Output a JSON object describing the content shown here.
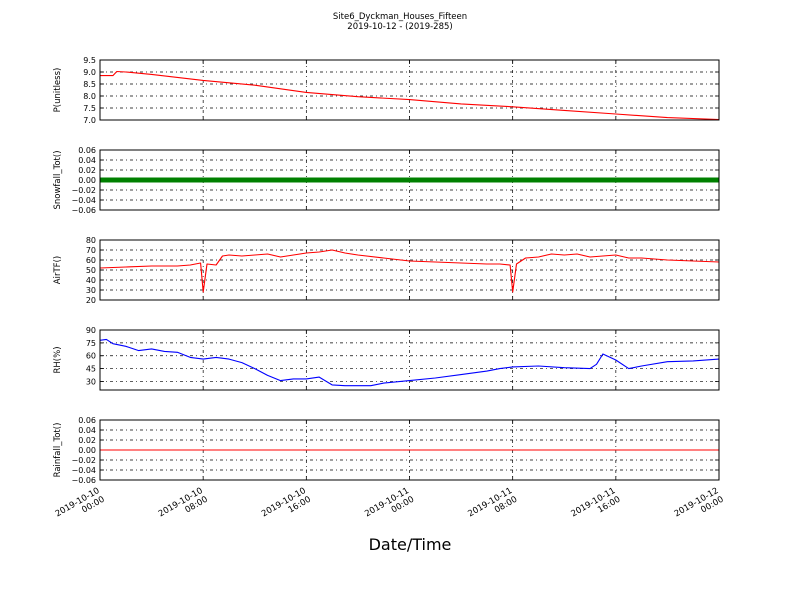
{
  "figure": {
    "title_line1": "Site6_Dyckman_Houses_Fifteen",
    "title_line2": "2019-10-12 - (2019-285)",
    "xlabel": "Date/Time"
  },
  "chart_data": {
    "type": "line",
    "x_ticks": [
      {
        "hours": 0,
        "line1": "2019-10-10",
        "line2": "00:00"
      },
      {
        "hours": 8,
        "line1": "2019-10-10",
        "line2": "08:00"
      },
      {
        "hours": 16,
        "line1": "2019-10-10",
        "line2": "16:00"
      },
      {
        "hours": 24,
        "line1": "2019-10-11",
        "line2": "00:00"
      },
      {
        "hours": 32,
        "line1": "2019-10-11",
        "line2": "08:00"
      },
      {
        "hours": 40,
        "line1": "2019-10-11",
        "line2": "16:00"
      },
      {
        "hours": 48,
        "line1": "2019-10-12",
        "line2": "00:00"
      }
    ],
    "x_range_hours": [
      0,
      48
    ],
    "grid": true,
    "panels": [
      {
        "id": "pressure",
        "ylabel": "P(unitless)",
        "ylim": [
          7.0,
          9.5
        ],
        "yticks": [
          "7.0",
          "7.5",
          "8.0",
          "8.5",
          "9.0",
          "9.5"
        ],
        "color": "#ff0000",
        "style": "line",
        "x": [
          0,
          1.0,
          1.3,
          2.0,
          4,
          8,
          12,
          16,
          20,
          24,
          28,
          32,
          36,
          40,
          44,
          48
        ],
        "y": [
          8.85,
          8.85,
          9.02,
          9.0,
          8.9,
          8.65,
          8.45,
          8.15,
          7.97,
          7.85,
          7.67,
          7.55,
          7.4,
          7.25,
          7.1,
          7.02
        ]
      },
      {
        "id": "snowfall",
        "ylabel": "Snowfall_Tot()",
        "ylim": [
          -0.06,
          0.06
        ],
        "yticks": [
          "−0.06",
          "−0.04",
          "−0.02",
          "0.00",
          "0.02",
          "0.04",
          "0.06"
        ],
        "color": "#008000",
        "style": "markers",
        "x": [
          0,
          48
        ],
        "y": [
          0.0,
          0.0
        ]
      },
      {
        "id": "airtemp",
        "ylabel": "AirTF()",
        "ylim": [
          20,
          80
        ],
        "yticks": [
          "20",
          "30",
          "40",
          "50",
          "60",
          "70",
          "80"
        ],
        "color": "#ff0000",
        "style": "line",
        "x": [
          0,
          2,
          4,
          6,
          7,
          7.8,
          8.0,
          8.3,
          9,
          9.5,
          10,
          11,
          12,
          13,
          14,
          15,
          16,
          17,
          18,
          19,
          20,
          22,
          24,
          26,
          28,
          30,
          31,
          31.8,
          32.0,
          32.3,
          33,
          34,
          35,
          36,
          37,
          38,
          39,
          40,
          41,
          42,
          44,
          46,
          48
        ],
        "y": [
          52,
          53,
          54,
          54,
          55,
          57,
          28,
          56,
          55,
          64,
          65,
          64,
          65,
          66,
          63,
          65,
          67,
          68,
          70,
          67,
          65,
          62,
          59,
          58,
          57,
          56,
          56,
          55,
          28,
          56,
          62,
          63,
          66,
          65,
          66,
          63,
          64,
          65,
          62,
          62,
          60,
          59,
          58
        ]
      },
      {
        "id": "rh",
        "ylabel": "RH(%)",
        "ylim": [
          20,
          90
        ],
        "yticks": [
          "30",
          "45",
          "60",
          "75",
          "90"
        ],
        "color": "#0000ff",
        "style": "line",
        "x": [
          0,
          0.5,
          1,
          2,
          3,
          4,
          5,
          6,
          7,
          8,
          9,
          10,
          11,
          12,
          13,
          14,
          15,
          16,
          17,
          18,
          19,
          20,
          21,
          22,
          24,
          26,
          28,
          30,
          31,
          32,
          34,
          36,
          38,
          38.5,
          39,
          40,
          41,
          42,
          44,
          46,
          48
        ],
        "y": [
          78,
          79,
          74,
          71,
          66,
          68,
          65,
          64,
          58,
          56,
          58,
          56,
          52,
          45,
          37,
          31,
          33,
          33,
          35,
          26,
          25,
          25,
          25,
          28,
          31,
          34,
          38,
          42,
          45,
          47,
          48,
          46,
          45,
          50,
          62,
          55,
          45,
          48,
          53,
          54,
          56
        ]
      },
      {
        "id": "rainfall",
        "ylabel": "Rainfall_Tot()",
        "ylim": [
          -0.06,
          0.06
        ],
        "yticks": [
          "−0.06",
          "−0.04",
          "−0.02",
          "0.00",
          "0.02",
          "0.04",
          "0.06"
        ],
        "color": "#ff0000",
        "style": "line",
        "x": [
          0,
          48
        ],
        "y": [
          0.0,
          0.0
        ]
      }
    ]
  }
}
